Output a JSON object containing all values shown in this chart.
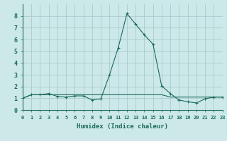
{
  "xlabel": "Humidex (Indice chaleur)",
  "background_color": "#cce8e8",
  "grid_color": "#aacccc",
  "line_color": "#1a6b5a",
  "x_values": [
    0,
    1,
    2,
    3,
    4,
    5,
    6,
    7,
    8,
    9,
    10,
    11,
    12,
    13,
    14,
    15,
    16,
    17,
    18,
    19,
    20,
    21,
    22,
    23
  ],
  "y_main": [
    1.0,
    1.3,
    1.3,
    1.4,
    1.15,
    1.1,
    1.2,
    1.2,
    0.85,
    0.95,
    3.0,
    5.3,
    8.2,
    7.3,
    6.4,
    5.6,
    2.05,
    1.4,
    0.85,
    0.7,
    0.6,
    0.95,
    1.1,
    1.1
  ],
  "y_flat": [
    1.0,
    1.3,
    1.3,
    1.3,
    1.3,
    1.3,
    1.3,
    1.3,
    1.3,
    1.3,
    1.3,
    1.3,
    1.3,
    1.3,
    1.3,
    1.3,
    1.3,
    1.1,
    1.1,
    1.1,
    1.1,
    1.1,
    1.1,
    1.1
  ],
  "xlim": [
    0,
    23
  ],
  "ylim": [
    0,
    9
  ],
  "yticks": [
    0,
    1,
    2,
    3,
    4,
    5,
    6,
    7,
    8
  ],
  "xticks": [
    0,
    1,
    2,
    3,
    4,
    5,
    6,
    7,
    8,
    9,
    10,
    11,
    12,
    13,
    14,
    15,
    16,
    17,
    18,
    19,
    20,
    21,
    22,
    23
  ],
  "xtick_labels": [
    "0",
    "1",
    "2",
    "3",
    "4",
    "5",
    "6",
    "7",
    "8",
    "9",
    "10",
    "11",
    "12",
    "13",
    "14",
    "15",
    "16",
    "17",
    "18",
    "19",
    "20",
    "21",
    "22",
    "23"
  ]
}
